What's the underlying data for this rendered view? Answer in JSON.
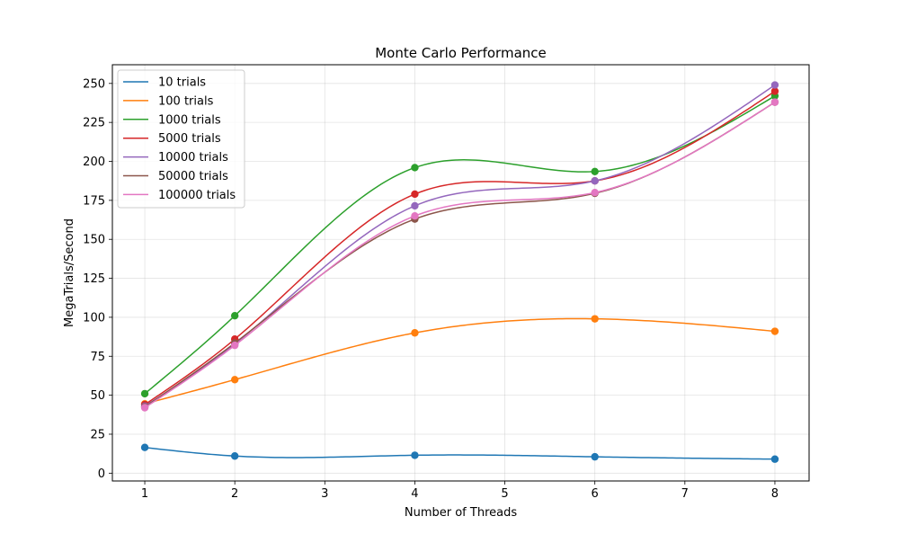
{
  "chart_data": {
    "type": "line",
    "title": "Monte Carlo Performance",
    "xlabel": "Number of Threads",
    "ylabel": "MegaTrials/Second",
    "x": [
      1,
      2,
      4,
      6,
      8
    ],
    "xlim": [
      0.64,
      8.38
    ],
    "ylim": [
      -5,
      262
    ],
    "xticks": [
      1,
      2,
      3,
      4,
      5,
      6,
      7,
      8
    ],
    "yticks": [
      0,
      25,
      50,
      75,
      100,
      125,
      150,
      175,
      200,
      225,
      250
    ],
    "grid": true,
    "legend_position": "top-left",
    "series": [
      {
        "name": "10 trials",
        "color": "#1f77b4",
        "values": [
          16.5,
          11,
          11.5,
          10.5,
          9
        ]
      },
      {
        "name": "100 trials",
        "color": "#ff7f0e",
        "values": [
          44.5,
          60,
          90,
          99,
          91
        ]
      },
      {
        "name": "1000 trials",
        "color": "#2ca02c",
        "values": [
          51,
          101,
          196,
          193.5,
          242
        ]
      },
      {
        "name": "5000 trials",
        "color": "#d62728",
        "values": [
          44,
          86,
          179,
          187.5,
          245
        ]
      },
      {
        "name": "10000 trials",
        "color": "#9467bd",
        "values": [
          43,
          83,
          171.5,
          187.5,
          249
        ]
      },
      {
        "name": "50000 trials",
        "color": "#8c564b",
        "values": [
          42.5,
          83.5,
          163,
          179.5,
          238
        ]
      },
      {
        "name": "100000 trials",
        "color": "#e377c2",
        "values": [
          42,
          82,
          165,
          180,
          238
        ]
      }
    ]
  }
}
